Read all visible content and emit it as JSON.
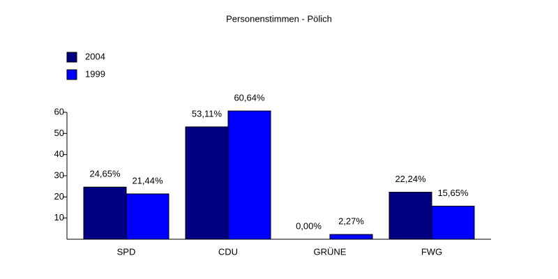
{
  "chart_data": {
    "type": "bar",
    "title": "Personenstimmen - Pölich",
    "categories": [
      "SPD",
      "CDU",
      "GRÜNE",
      "FWG"
    ],
    "series": [
      {
        "name": "2004",
        "color": "#000080",
        "values": [
          24.65,
          53.11,
          0.0,
          22.24
        ],
        "value_labels": [
          "24,65%",
          "53,11%",
          "0,00%",
          "22,24%"
        ]
      },
      {
        "name": "1999",
        "color": "#0000ff",
        "values": [
          21.44,
          60.64,
          2.27,
          15.65
        ],
        "value_labels": [
          "21,44%",
          "60,64%",
          "2,27%",
          "15,65%"
        ]
      }
    ],
    "ylim": [
      0,
      60
    ],
    "yticks": [
      10,
      20,
      30,
      40,
      50,
      60
    ],
    "legend": "top-left"
  }
}
